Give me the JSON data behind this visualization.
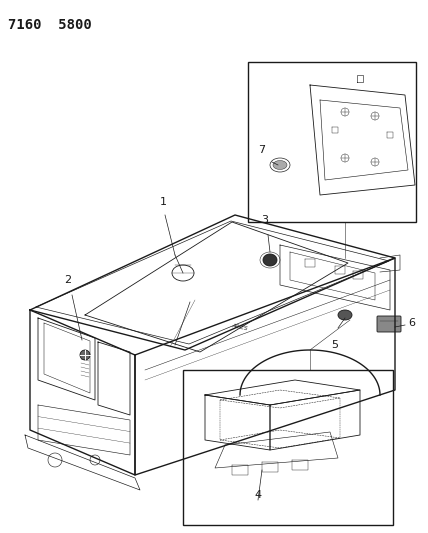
{
  "title": "7160  5800",
  "background_color": "#ffffff",
  "line_color": "#1a1a1a",
  "fig_width": 4.28,
  "fig_height": 5.33,
  "dpi": 100,
  "title_fontsize": 10,
  "title_fontweight": "bold"
}
